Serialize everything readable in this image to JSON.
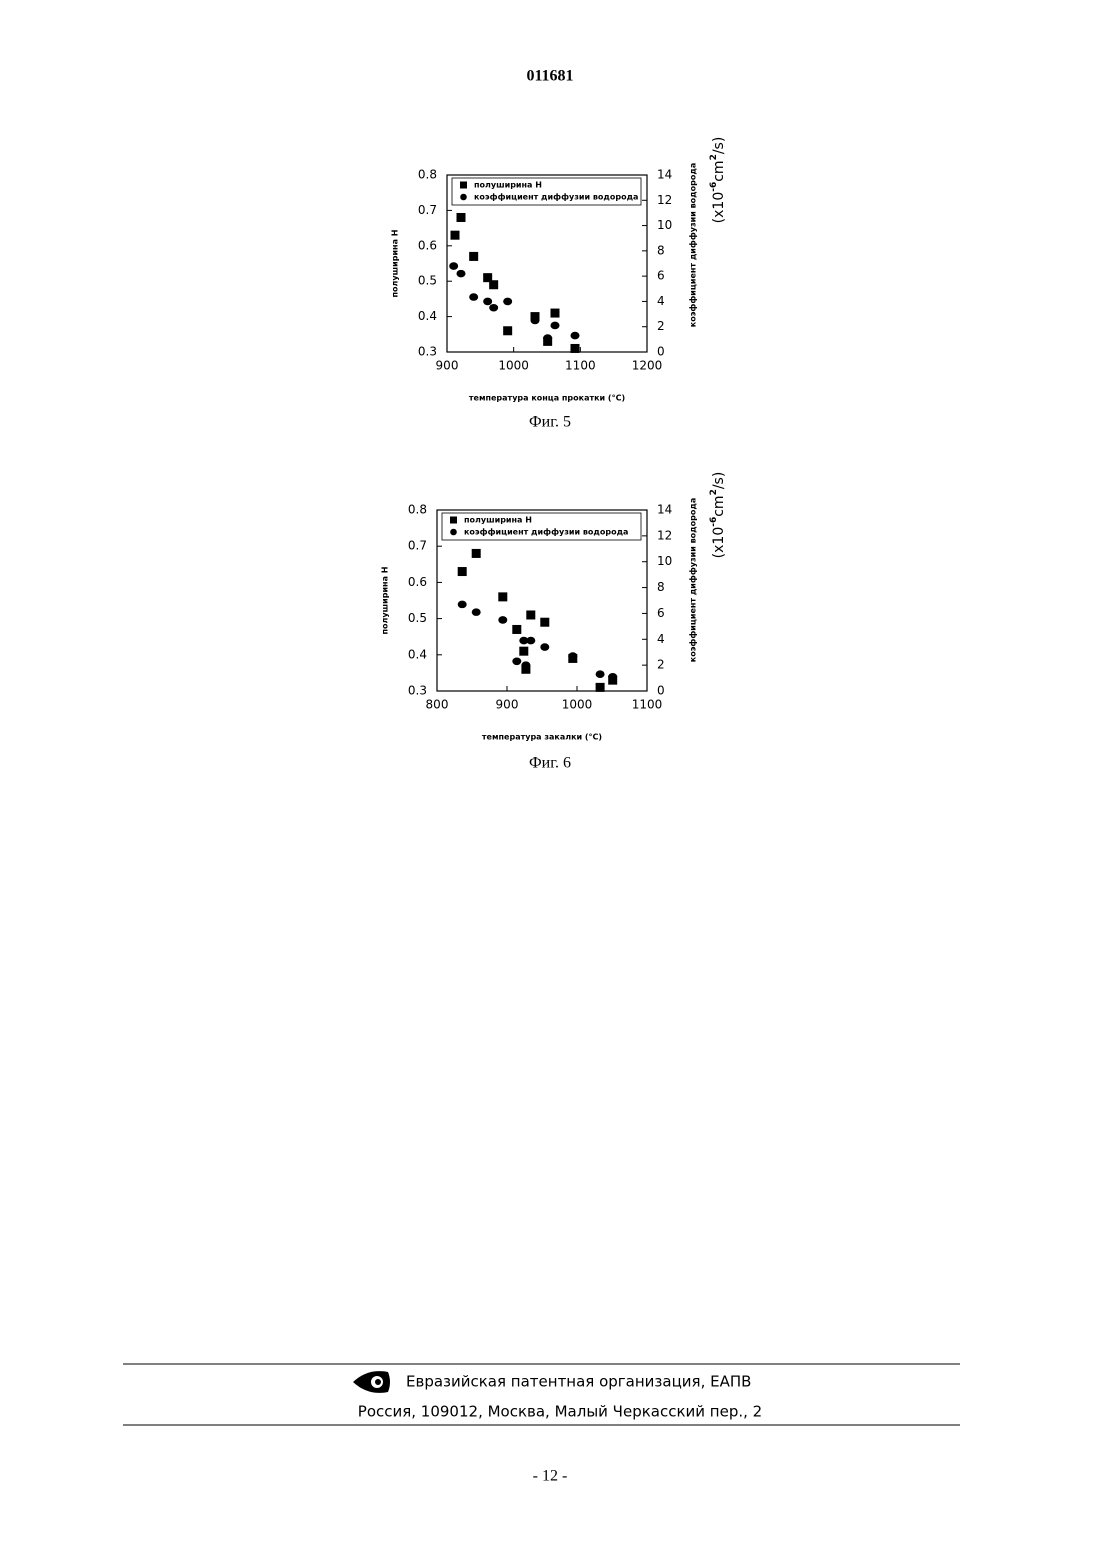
{
  "header": {
    "number": "011681"
  },
  "chart_data": [
    {
      "type": "scatter",
      "caption": "Фиг. 5",
      "xlabel": "температура конца прокатки (°С)",
      "ylabel": "полуширина Н",
      "y2label": "коэффициент диффузии водорода",
      "y2_unit": [
        "(x10",
        "-6",
        "cm",
        "2",
        "/s)"
      ],
      "xlim": [
        900,
        1200
      ],
      "xticks": [
        900,
        1000,
        1100,
        1200
      ],
      "ylim": [
        0.3,
        0.8
      ],
      "yticks": [
        0.3,
        0.4,
        0.5,
        0.6,
        0.7,
        0.8
      ],
      "y2lim": [
        0,
        14
      ],
      "y2ticks": [
        0,
        2,
        4,
        6,
        8,
        10,
        12,
        14
      ],
      "legend": "upper",
      "series": [
        {
          "name": "полуширина Н",
          "color": "#000000",
          "marker": "square",
          "x": [
            912,
            921,
            940,
            961,
            970,
            991,
            1032,
            1051,
            1062,
            1092
          ],
          "values": [
            0.63,
            0.68,
            0.57,
            0.51,
            0.49,
            0.36,
            0.4,
            0.33,
            0.41,
            0.31
          ]
        },
        {
          "name": "коэффициент диффузии водорода",
          "color": "#000000",
          "marker": "circle",
          "axis": "y2",
          "x": [
            910,
            921,
            940,
            961,
            970,
            991,
            1032,
            1051,
            1062,
            1092
          ],
          "values": [
            6.8,
            6.2,
            4.35,
            4.0,
            3.5,
            4.0,
            2.5,
            1.1,
            2.1,
            1.3
          ]
        }
      ]
    },
    {
      "type": "scatter",
      "caption": "Фиг. 6",
      "xlabel": "температура закалки (°С)",
      "ylabel": "полуширина Н",
      "y2label": "коэффициент диффузии водорода",
      "y2_unit": [
        "(x10",
        "-6",
        "cm",
        "2",
        "/s)"
      ],
      "xlim": [
        800,
        1100
      ],
      "xticks": [
        800,
        900,
        1000,
        1100
      ],
      "ylim": [
        0.3,
        0.8
      ],
      "yticks": [
        0.3,
        0.4,
        0.5,
        0.6,
        0.7,
        0.8
      ],
      "y2lim": [
        0,
        14
      ],
      "y2ticks": [
        0,
        2,
        4,
        6,
        8,
        10,
        12,
        14
      ],
      "legend": "upper",
      "series": [
        {
          "name": "полуширина Н",
          "color": "#000000",
          "marker": "square",
          "x": [
            836,
            856,
            894,
            914,
            934,
            954,
            924,
            927,
            994,
            1033,
            1051
          ],
          "values": [
            0.63,
            0.68,
            0.56,
            0.47,
            0.51,
            0.49,
            0.41,
            0.36,
            0.39,
            0.31,
            0.33
          ]
        },
        {
          "name": "коэффициент диффузии водорода",
          "color": "#000000",
          "marker": "circle",
          "axis": "y2",
          "x": [
            836,
            856,
            894,
            914,
            924,
            934,
            927,
            954,
            994,
            1033,
            1051
          ],
          "values": [
            6.7,
            6.1,
            5.5,
            2.3,
            3.9,
            3.9,
            2.0,
            3.4,
            2.7,
            1.3,
            1.1
          ]
        }
      ]
    }
  ],
  "footer": {
    "organization": "Евразийская патентная организация, ЕАПВ",
    "address": "Россия, 109012, Москва, Малый Черкасский пер., 2"
  },
  "page_number": "- 12 -"
}
